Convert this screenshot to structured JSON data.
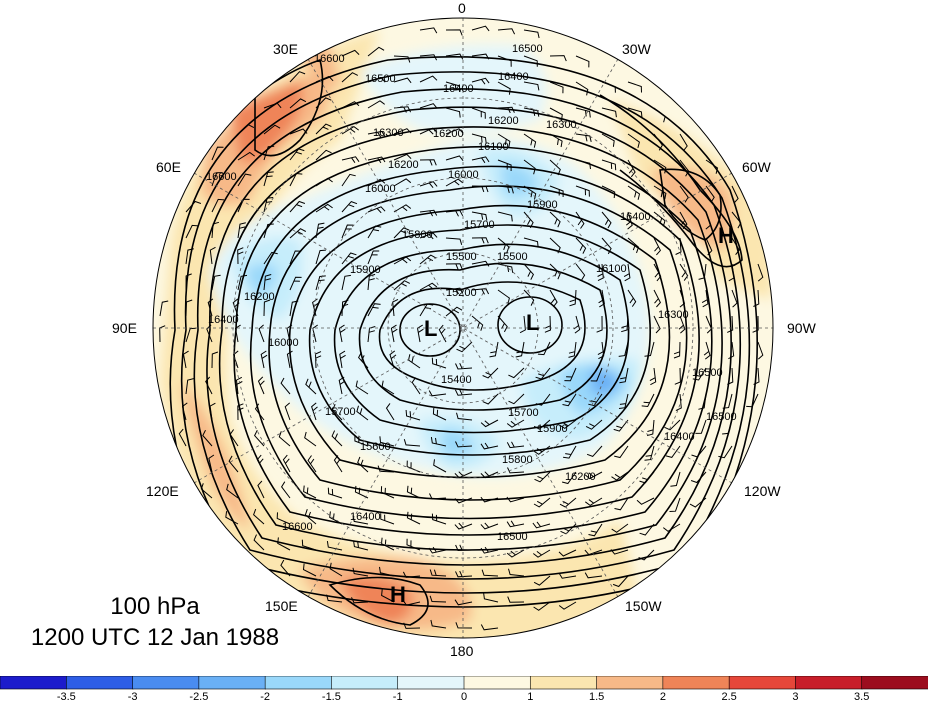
{
  "title": {
    "level": "100 hPa",
    "time": "1200 UTC 12 Jan 1988"
  },
  "longitude_labels": {
    "top": "0",
    "bottom": "180",
    "left": "90E",
    "right": "90W",
    "upper_left_30": "30E",
    "upper_left_60": "60E",
    "upper_right_30": "30W",
    "upper_right_60": "60W",
    "lower_left_120": "120E",
    "lower_left_150": "150E",
    "lower_right_120": "120W",
    "lower_right_150": "150W"
  },
  "pressure_centers": {
    "high_atlantic": "H",
    "high_pacific": "H",
    "low_asia": "L",
    "low_canada": "L"
  },
  "contour_labels": {
    "c1": "16500",
    "c2": "16400",
    "c3": "16500",
    "c4": "16400",
    "c5": "16300",
    "c6": "16200",
    "c7": "16200",
    "c8": "16100",
    "c9": "16000",
    "c10": "16000",
    "c11": "16600",
    "c12": "16600",
    "c13": "15900",
    "c14": "15700",
    "c15": "15500",
    "c16": "15500",
    "c17": "15200",
    "c18": "15400",
    "c19": "15700",
    "c20": "15600",
    "c21": "15800",
    "c22": "15900",
    "c23": "16200",
    "c24": "16400",
    "c25": "16400",
    "c26": "16500",
    "c27": "16600",
    "c28": "16500",
    "c29": "16400",
    "c30": "16300",
    "c31": "16400",
    "c32": "15900",
    "c33": "16100",
    "c34": "16200",
    "c35": "15800",
    "c36": "16000",
    "c37": "16200",
    "c38": "15700",
    "c39": "16300",
    "c40": "16500"
  },
  "colorbar": {
    "ticks": [
      "-3.5",
      "-3",
      "-2.5",
      "-2",
      "-1.5",
      "-1",
      "0",
      "1",
      "1.5",
      "2",
      "2.5",
      "3",
      "3.5"
    ],
    "colors": [
      "#1c1ccc",
      "#2e5ee6",
      "#4a8cf0",
      "#6ab0f5",
      "#9ad8fa",
      "#c6edfb",
      "#e4f6fb",
      "#fdf8e2",
      "#fbe6b0",
      "#f7b988",
      "#ef8458",
      "#e6473a",
      "#c81e2a",
      "#9c0d1e"
    ]
  },
  "colors": {
    "contour": "#000000",
    "map_boundary": "#000000"
  }
}
